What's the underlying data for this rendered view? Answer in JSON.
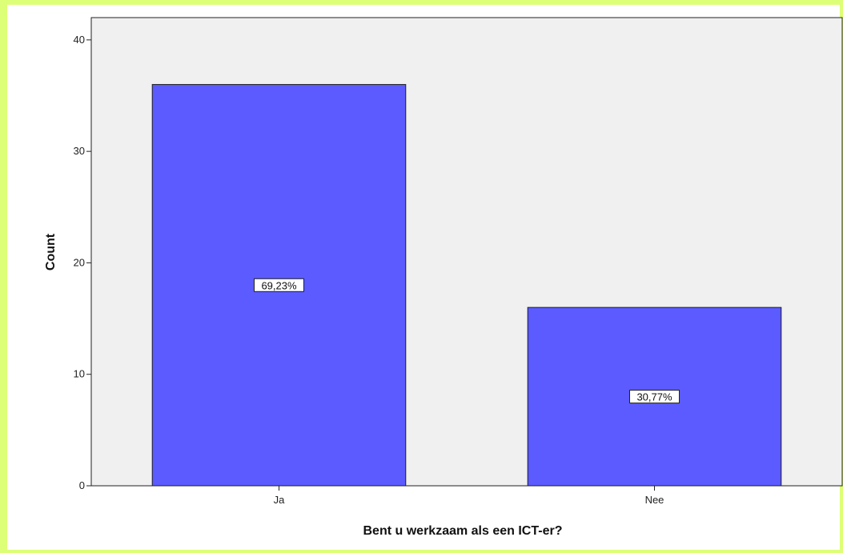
{
  "chart_data": {
    "type": "bar",
    "categories": [
      "Ja",
      "Nee"
    ],
    "values": [
      36,
      16
    ],
    "data_labels": [
      "69,23%",
      "30,77%"
    ],
    "xlabel": "Bent u werkzaam als een ICT-er?",
    "ylabel": "Count",
    "ylim": [
      0,
      42
    ],
    "yticks": [
      0,
      10,
      20,
      30,
      40
    ],
    "grid": false,
    "colors": {
      "bar": "#5b5bff",
      "bar_outline": "#1e1e1e",
      "plot_background": "#f0f0f0",
      "frame": "#ddff77"
    }
  }
}
